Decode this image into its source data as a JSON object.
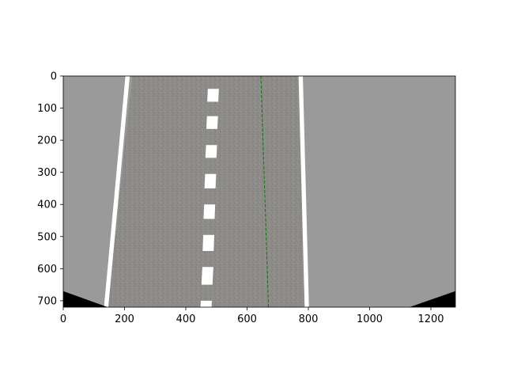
{
  "chart_data": {
    "type": "image",
    "title": "",
    "xlabel": "",
    "ylabel": "",
    "xlim": [
      0,
      1280
    ],
    "ylim": [
      720,
      0
    ],
    "y_inverted": true,
    "grid": false,
    "x_ticks": [
      0,
      200,
      400,
      600,
      800,
      1000,
      1200
    ],
    "y_ticks": [
      0,
      100,
      200,
      300,
      400,
      500,
      600,
      700
    ],
    "colors": {
      "background": "#ffffff",
      "outside_area": "#9a9a9a",
      "road": "#8e8c89",
      "road_texture": "#7d7b78",
      "lane_lines": "#ffffff",
      "corner_fill": "#000000",
      "center_line": "#0a7a0a",
      "axis": "#000000"
    },
    "road": {
      "left_edge_top": 225,
      "left_edge_bottom": 145,
      "right_edge_top": 770,
      "right_edge_bottom": 790
    },
    "lane_lines": {
      "left_solid": {
        "x_top": 210,
        "x_bottom": 140
      },
      "right_solid": {
        "x_top": 775,
        "x_bottom": 795
      },
      "center_dashes": [
        {
          "y0": 40,
          "y1": 80,
          "x_top": 490,
          "x_bottom": 488
        },
        {
          "y0": 125,
          "y1": 165,
          "x_top": 487,
          "x_bottom": 485
        },
        {
          "y0": 215,
          "y1": 255,
          "x_top": 484,
          "x_bottom": 482
        },
        {
          "y0": 305,
          "y1": 350,
          "x_top": 481,
          "x_bottom": 479
        },
        {
          "y0": 400,
          "y1": 445,
          "x_top": 478,
          "x_bottom": 476
        },
        {
          "y0": 495,
          "y1": 545,
          "x_top": 475,
          "x_bottom": 473
        },
        {
          "y0": 595,
          "y1": 650,
          "x_top": 472,
          "x_bottom": 469
        },
        {
          "y0": 700,
          "y1": 720,
          "x_top": 467,
          "x_bottom": 466
        }
      ]
    },
    "corners": {
      "left": [
        [
          0,
          670
        ],
        [
          145,
          720
        ],
        [
          0,
          720
        ]
      ],
      "right": [
        [
          1280,
          670
        ],
        [
          1130,
          720
        ],
        [
          1280,
          720
        ]
      ]
    },
    "center_line": {
      "style": "dashed",
      "x": [
        645,
        670
      ],
      "y": [
        0,
        720
      ]
    }
  }
}
